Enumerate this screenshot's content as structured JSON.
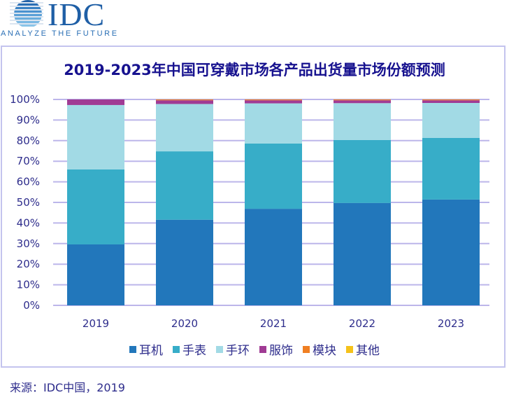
{
  "logo": {
    "name": "IDC",
    "tagline": "ANALYZE THE FUTURE"
  },
  "footer": {
    "source": "来源：IDC中国，2019"
  },
  "chart_data": {
    "type": "bar",
    "stacked": true,
    "title": "2019-2023年中国可穿戴市场各产品出货量市场份额预测",
    "xlabel": "",
    "ylabel": "",
    "ylim": [
      0,
      100
    ],
    "y_ticks": [
      "0%",
      "10%",
      "20%",
      "30%",
      "40%",
      "50%",
      "60%",
      "70%",
      "80%",
      "90%",
      "100%"
    ],
    "grid": true,
    "legend_position": "bottom",
    "categories": [
      "2019",
      "2020",
      "2021",
      "2022",
      "2023"
    ],
    "series": [
      {
        "name": "耳机",
        "color": "#2277bb",
        "values": [
          29.6,
          41.6,
          46.9,
          49.7,
          51.4
        ]
      },
      {
        "name": "手表",
        "color": "#37adc8",
        "values": [
          36.4,
          33.2,
          31.7,
          30.6,
          29.9
        ]
      },
      {
        "name": "手环",
        "color": "#a2dae5",
        "values": [
          31.3,
          23.0,
          19.5,
          17.9,
          17.0
        ]
      },
      {
        "name": "服饰",
        "color": "#a03b94",
        "values": [
          2.7,
          1.8,
          1.5,
          1.4,
          1.3
        ]
      },
      {
        "name": "模块",
        "color": "#f07f22",
        "values": [
          0.0,
          0.4,
          0.4,
          0.4,
          0.4
        ]
      },
      {
        "name": "其他",
        "color": "#f5c21b",
        "values": [
          0.0,
          0.0,
          0.0,
          0.0,
          0.0
        ]
      }
    ]
  }
}
